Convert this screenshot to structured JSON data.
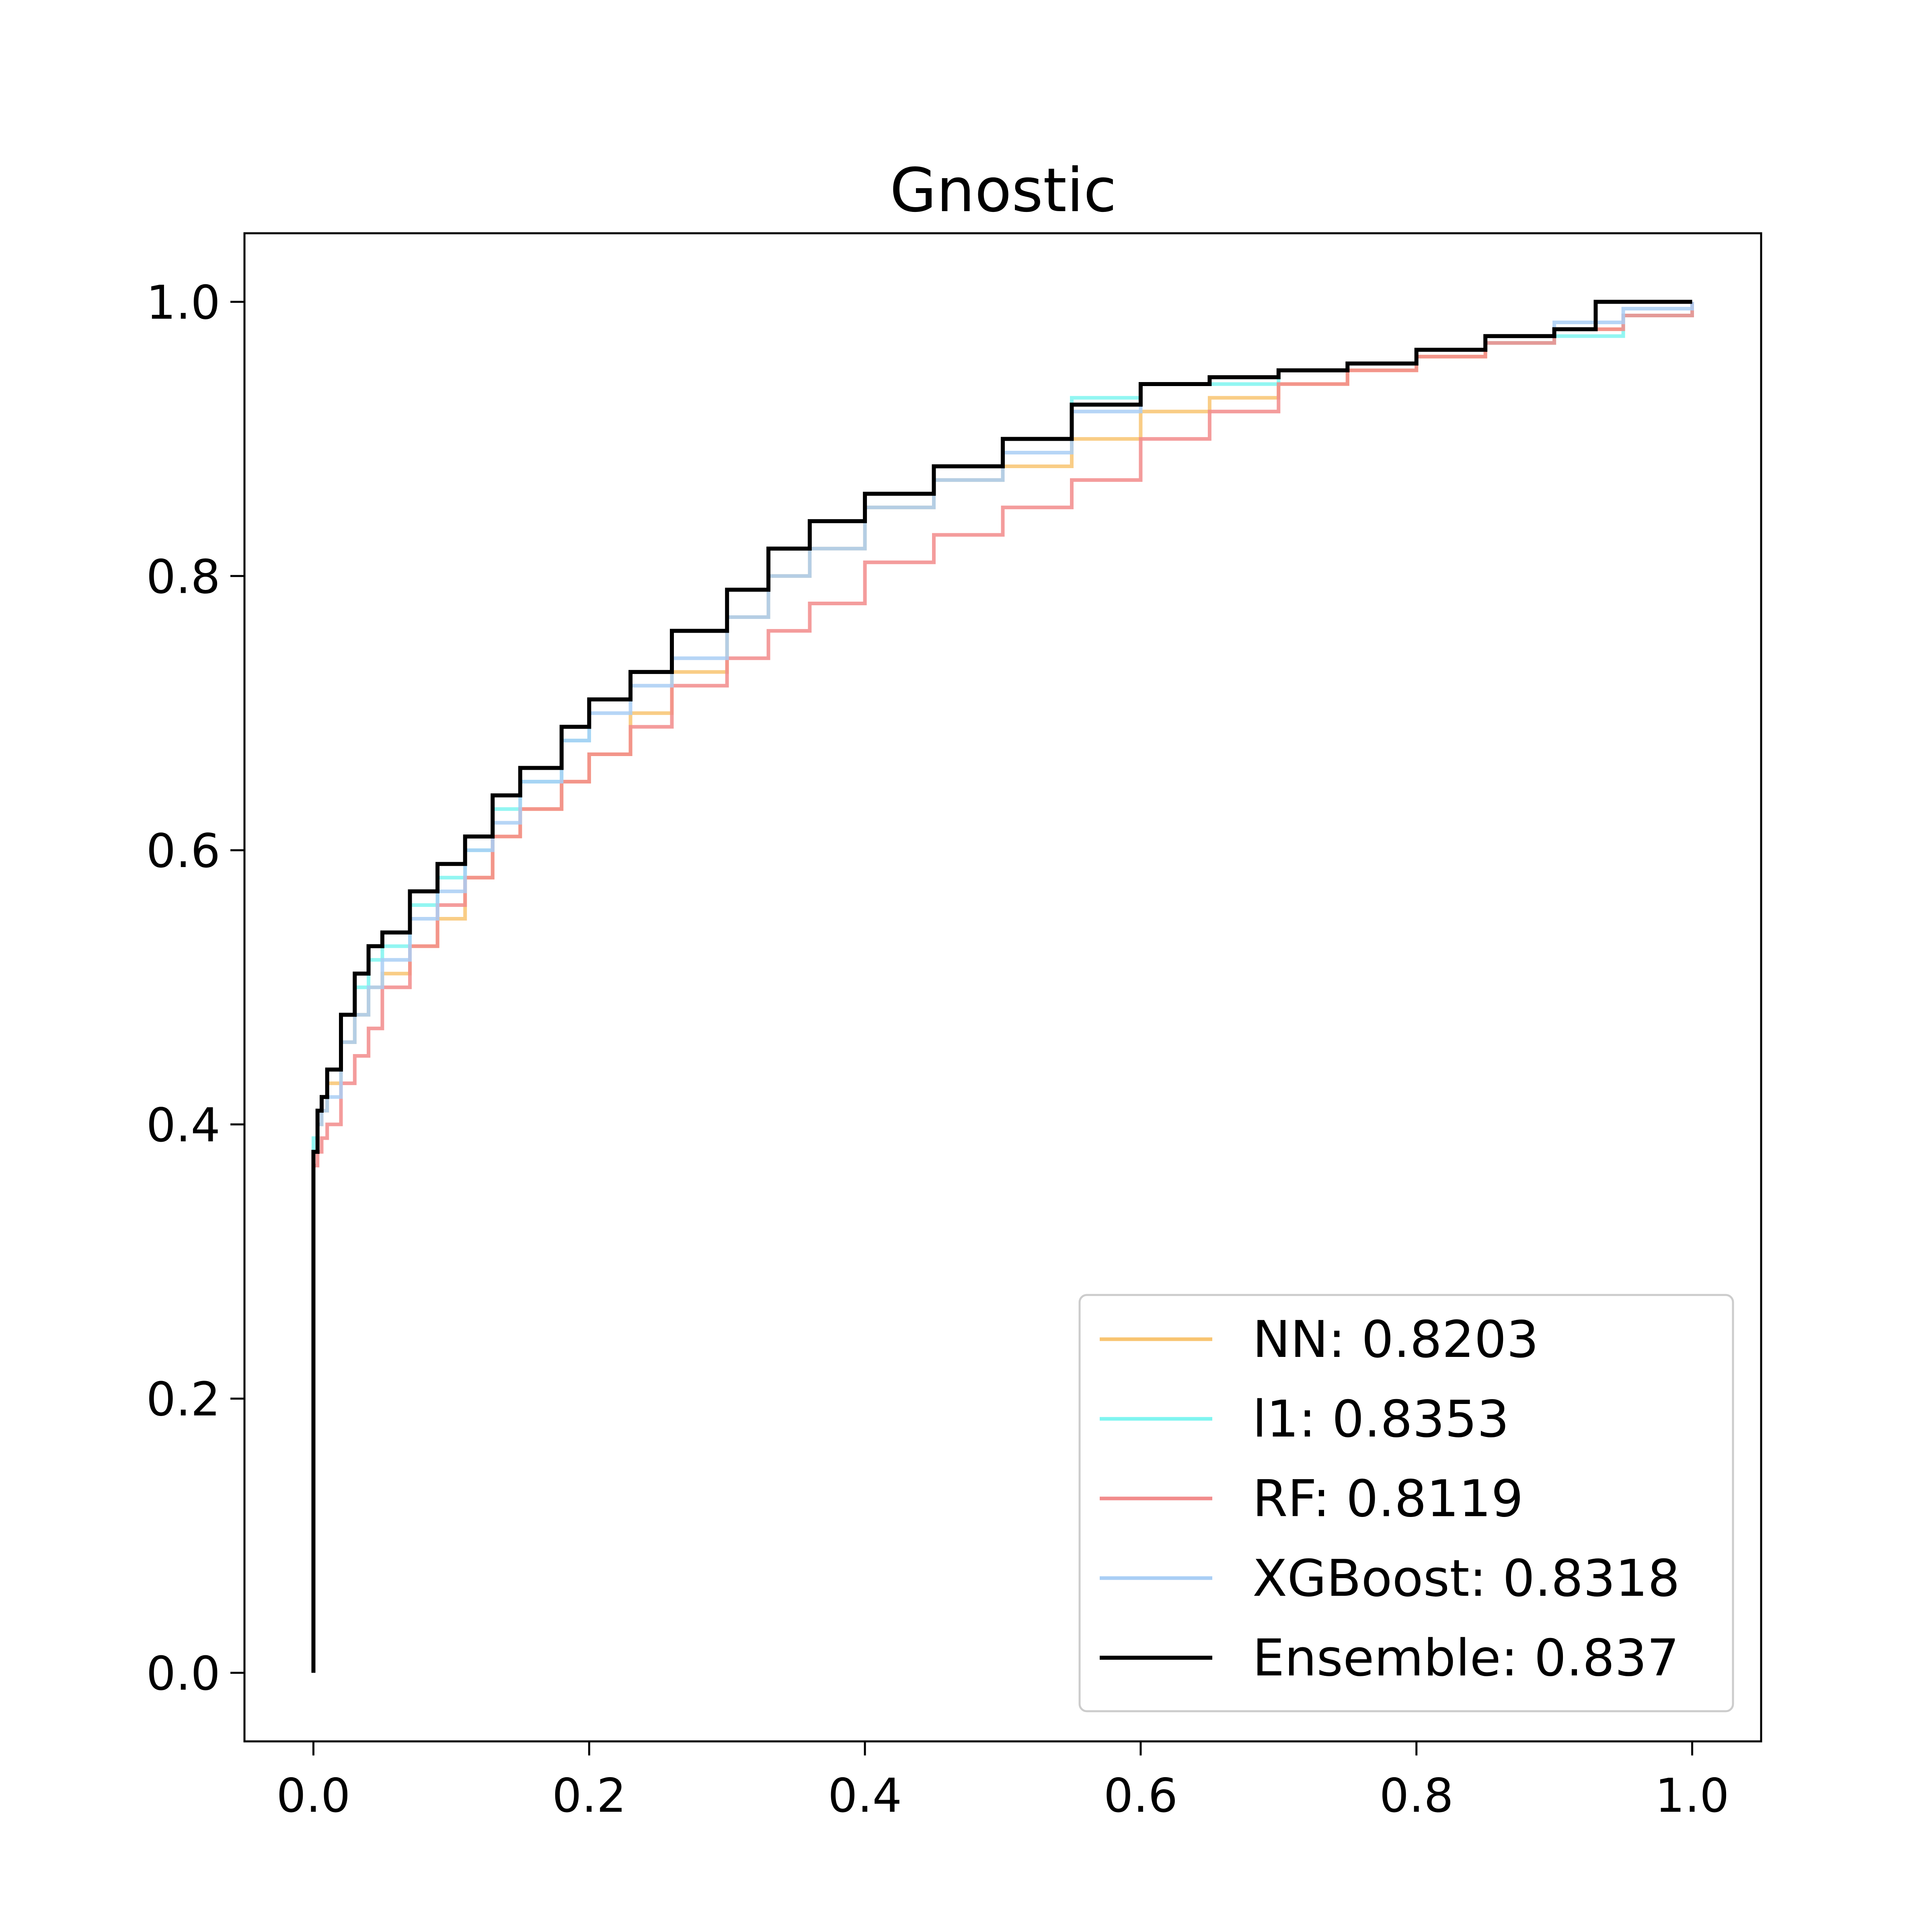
{
  "chart_data": {
    "type": "line",
    "title": "Gnostic",
    "xlabel": "",
    "ylabel": "",
    "xlim": [
      -0.05,
      1.05
    ],
    "ylim": [
      -0.05,
      1.05
    ],
    "xticks": [
      0.0,
      0.2,
      0.4,
      0.6,
      0.8,
      1.0
    ],
    "yticks": [
      0.0,
      0.2,
      0.4,
      0.6,
      0.8,
      1.0
    ],
    "xtick_labels": [
      "0.0",
      "0.2",
      "0.4",
      "0.6",
      "0.8",
      "1.0"
    ],
    "ytick_labels": [
      "0.0",
      "0.2",
      "0.4",
      "0.6",
      "0.8",
      "1.0"
    ],
    "grid": false,
    "legend_position": "bottom-right",
    "series": [
      {
        "name": "NN: 0.8203",
        "color": "#f8c471",
        "x": [
          0,
          0,
          0.003,
          0.006,
          0.01,
          0.02,
          0.03,
          0.04,
          0.05,
          0.07,
          0.09,
          0.11,
          0.13,
          0.15,
          0.18,
          0.2,
          0.23,
          0.26,
          0.3,
          0.33,
          0.36,
          0.4,
          0.45,
          0.5,
          0.55,
          0.6,
          0.65,
          0.7,
          0.75,
          0.8,
          0.85,
          0.9,
          0.95,
          1.0
        ],
        "y": [
          0,
          0.38,
          0.4,
          0.41,
          0.43,
          0.46,
          0.48,
          0.5,
          0.51,
          0.53,
          0.55,
          0.58,
          0.61,
          0.63,
          0.65,
          0.67,
          0.7,
          0.73,
          0.77,
          0.8,
          0.82,
          0.85,
          0.87,
          0.88,
          0.9,
          0.92,
          0.93,
          0.94,
          0.95,
          0.96,
          0.97,
          0.98,
          0.99,
          1.0
        ]
      },
      {
        "name": "l1: 0.8353",
        "color": "#7ff5f0",
        "x": [
          0,
          0,
          0.003,
          0.006,
          0.01,
          0.02,
          0.03,
          0.04,
          0.05,
          0.07,
          0.09,
          0.11,
          0.13,
          0.15,
          0.18,
          0.2,
          0.23,
          0.26,
          0.3,
          0.33,
          0.36,
          0.4,
          0.45,
          0.5,
          0.55,
          0.6,
          0.65,
          0.7,
          0.75,
          0.8,
          0.85,
          0.9,
          0.95,
          1.0
        ],
        "y": [
          0,
          0.39,
          0.41,
          0.42,
          0.44,
          0.48,
          0.5,
          0.52,
          0.53,
          0.56,
          0.58,
          0.6,
          0.63,
          0.65,
          0.68,
          0.71,
          0.73,
          0.76,
          0.79,
          0.82,
          0.84,
          0.86,
          0.88,
          0.9,
          0.93,
          0.94,
          0.94,
          0.95,
          0.955,
          0.965,
          0.97,
          0.975,
          0.99,
          1.0
        ]
      },
      {
        "name": "RF: 0.8119",
        "color": "#f28b8b",
        "x": [
          0,
          0,
          0.003,
          0.006,
          0.01,
          0.02,
          0.03,
          0.04,
          0.05,
          0.07,
          0.09,
          0.11,
          0.13,
          0.15,
          0.18,
          0.2,
          0.23,
          0.26,
          0.3,
          0.33,
          0.36,
          0.4,
          0.45,
          0.5,
          0.55,
          0.6,
          0.65,
          0.7,
          0.75,
          0.8,
          0.85,
          0.9,
          0.95,
          1.0
        ],
        "y": [
          0,
          0.37,
          0.38,
          0.39,
          0.4,
          0.43,
          0.45,
          0.47,
          0.5,
          0.53,
          0.56,
          0.58,
          0.61,
          0.63,
          0.65,
          0.67,
          0.69,
          0.72,
          0.74,
          0.76,
          0.78,
          0.81,
          0.83,
          0.85,
          0.87,
          0.9,
          0.92,
          0.94,
          0.95,
          0.96,
          0.97,
          0.98,
          0.99,
          1.0
        ]
      },
      {
        "name": "XGBoost: 0.8318",
        "color": "#a9cef5",
        "x": [
          0,
          0,
          0.003,
          0.006,
          0.01,
          0.02,
          0.03,
          0.04,
          0.05,
          0.07,
          0.09,
          0.11,
          0.13,
          0.15,
          0.18,
          0.2,
          0.23,
          0.26,
          0.3,
          0.33,
          0.36,
          0.4,
          0.45,
          0.5,
          0.55,
          0.6,
          0.65,
          0.7,
          0.75,
          0.8,
          0.85,
          0.9,
          0.95,
          1.0
        ],
        "y": [
          0,
          0.38,
          0.4,
          0.41,
          0.42,
          0.46,
          0.48,
          0.5,
          0.52,
          0.55,
          0.57,
          0.6,
          0.62,
          0.65,
          0.68,
          0.7,
          0.72,
          0.74,
          0.77,
          0.8,
          0.82,
          0.85,
          0.87,
          0.89,
          0.92,
          0.94,
          0.945,
          0.95,
          0.955,
          0.965,
          0.975,
          0.985,
          0.995,
          1.0
        ]
      },
      {
        "name": "Ensemble: 0.837",
        "color": "#000000",
        "x": [
          0,
          0,
          0.003,
          0.006,
          0.01,
          0.02,
          0.03,
          0.04,
          0.05,
          0.07,
          0.09,
          0.11,
          0.13,
          0.15,
          0.18,
          0.2,
          0.23,
          0.26,
          0.3,
          0.33,
          0.36,
          0.4,
          0.45,
          0.5,
          0.55,
          0.6,
          0.65,
          0.7,
          0.75,
          0.8,
          0.85,
          0.9,
          0.93,
          0.95,
          1.0
        ],
        "y": [
          0,
          0.38,
          0.41,
          0.42,
          0.44,
          0.48,
          0.51,
          0.53,
          0.54,
          0.57,
          0.59,
          0.61,
          0.64,
          0.66,
          0.69,
          0.71,
          0.73,
          0.76,
          0.79,
          0.82,
          0.84,
          0.86,
          0.88,
          0.9,
          0.925,
          0.94,
          0.945,
          0.95,
          0.955,
          0.965,
          0.975,
          0.98,
          1.0,
          1.0,
          1.0
        ]
      }
    ]
  }
}
